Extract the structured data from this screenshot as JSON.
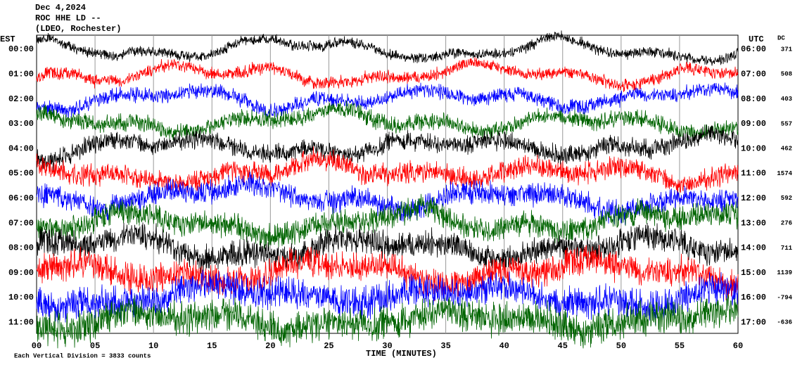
{
  "header": {
    "lines": [
      "Dec 4,2024",
      "ROC HHE LD --",
      "(LDEO, Rochester)"
    ]
  },
  "left_header": "EST",
  "right_header": "UTC",
  "dc_header": "DC",
  "rows": [
    {
      "est": "00:00",
      "utc": "06:00",
      "dc": "371",
      "color": "#000000"
    },
    {
      "est": "01:00",
      "utc": "07:00",
      "dc": "508",
      "color": "#ff0000"
    },
    {
      "est": "02:00",
      "utc": "08:00",
      "dc": "403",
      "color": "#0000ff"
    },
    {
      "est": "03:00",
      "utc": "09:00",
      "dc": "557",
      "color": "#006400"
    },
    {
      "est": "04:00",
      "utc": "10:00",
      "dc": "462",
      "color": "#000000"
    },
    {
      "est": "05:00",
      "utc": "11:00",
      "dc": "1574",
      "color": "#ff0000"
    },
    {
      "est": "06:00",
      "utc": "12:00",
      "dc": "592",
      "color": "#0000ff"
    },
    {
      "est": "07:00",
      "utc": "13:00",
      "dc": "276",
      "color": "#006400"
    },
    {
      "est": "08:00",
      "utc": "14:00",
      "dc": "711",
      "color": "#000000"
    },
    {
      "est": "09:00",
      "utc": "15:00",
      "dc": "1139",
      "color": "#ff0000"
    },
    {
      "est": "10:00",
      "utc": "16:00",
      "dc": "-794",
      "color": "#0000ff"
    },
    {
      "est": "11:00",
      "utc": "17:00",
      "dc": "-636",
      "color": "#006400"
    }
  ],
  "x_axis": {
    "ticks": [
      "00",
      "05",
      "10",
      "15",
      "20",
      "25",
      "30",
      "35",
      "40",
      "45",
      "50",
      "55",
      "60"
    ],
    "label": "TIME (MINUTES)",
    "note": "Each Vertical Division = 3833 counts"
  }
}
